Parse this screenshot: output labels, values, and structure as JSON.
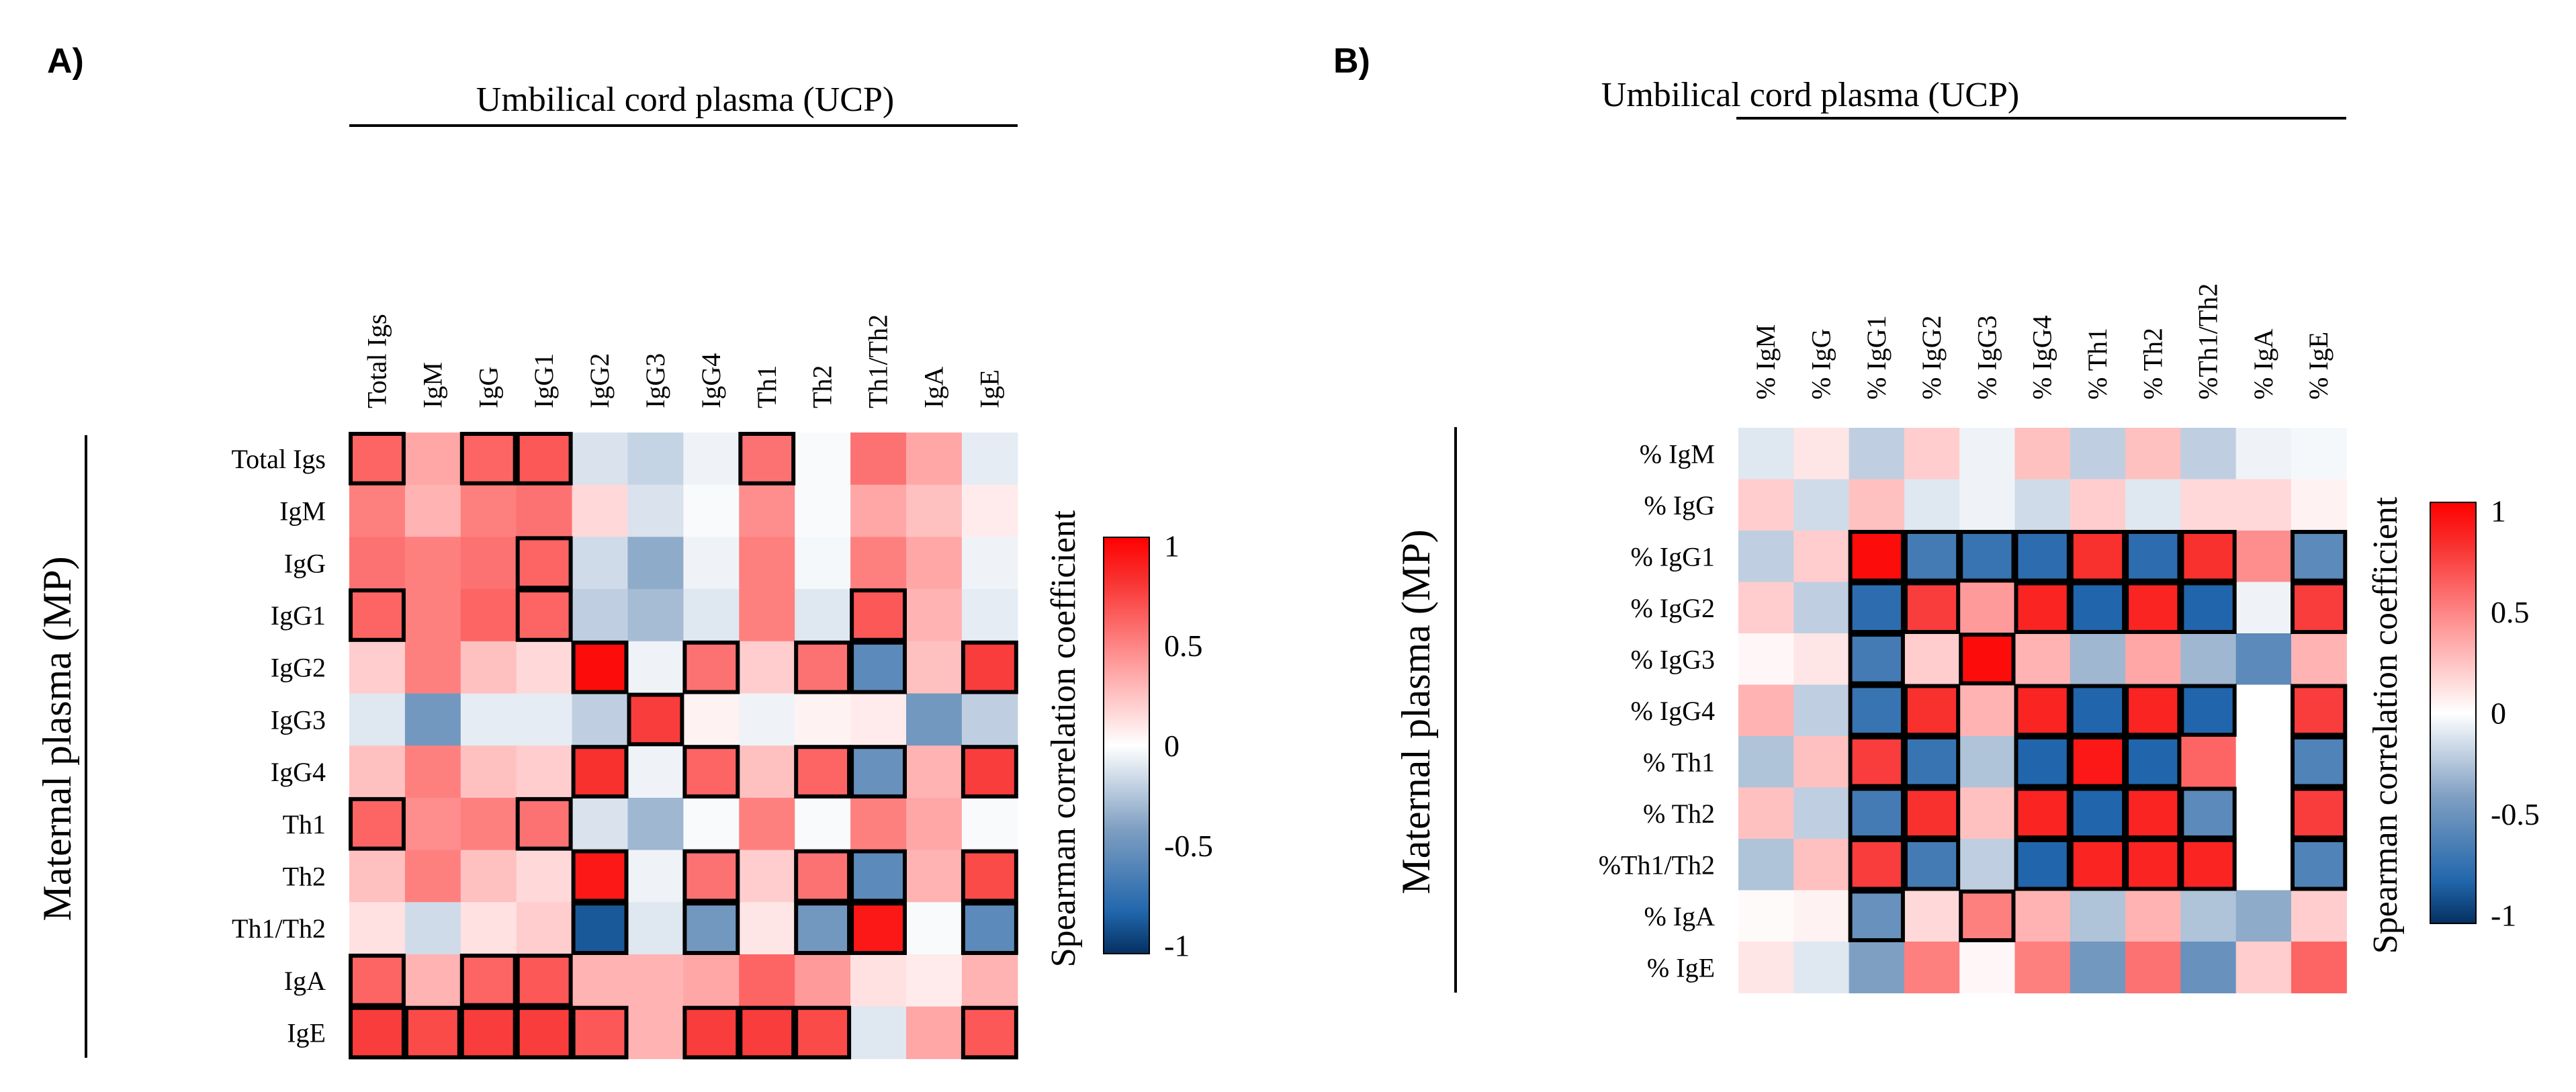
{
  "chart_data": [
    {
      "type": "heatmap",
      "panel_label": "A)",
      "title": "Umbilical cord plasma (UCP)",
      "ylabel": "Maternal plasma (MP)",
      "colorbar_label": "Spearman correlation coefficient",
      "colorbar_range": [
        -1,
        1
      ],
      "colorbar_ticks": [
        "1",
        "0.5",
        "0",
        "-0.5",
        "-1"
      ],
      "columns": [
        "Total Igs",
        "IgM",
        "IgG",
        "IgG1",
        "IgG2",
        "IgG3",
        "IgG4",
        "Th1",
        "Th2",
        "Th1/Th2",
        "IgA",
        "IgE"
      ],
      "rows": [
        "Total Igs",
        "IgM",
        "IgG",
        "IgG1",
        "IgG2",
        "IgG3",
        "IgG4",
        "Th1",
        "Th2",
        "Th1/Th2",
        "IgA",
        "IgE"
      ],
      "values": [
        [
          0.6,
          0.35,
          0.6,
          0.65,
          -0.12,
          -0.18,
          -0.05,
          0.55,
          -0.02,
          0.55,
          0.35,
          -0.08
        ],
        [
          0.5,
          0.3,
          0.5,
          0.55,
          0.15,
          -0.12,
          -0.02,
          0.45,
          -0.02,
          0.35,
          0.25,
          0.08
        ],
        [
          0.55,
          0.5,
          0.55,
          0.6,
          -0.15,
          -0.35,
          -0.05,
          0.5,
          -0.03,
          0.5,
          0.35,
          -0.05
        ],
        [
          0.6,
          0.5,
          0.6,
          0.6,
          -0.2,
          -0.28,
          -0.1,
          0.5,
          -0.1,
          0.65,
          0.3,
          -0.08
        ],
        [
          0.2,
          0.5,
          0.25,
          0.15,
          0.95,
          -0.05,
          0.55,
          0.2,
          0.55,
          -0.55,
          0.25,
          0.75
        ],
        [
          -0.1,
          -0.45,
          -0.08,
          -0.08,
          -0.2,
          0.75,
          0.05,
          -0.05,
          0.05,
          0.08,
          -0.45,
          -0.2
        ],
        [
          0.25,
          0.5,
          0.25,
          0.2,
          0.8,
          -0.05,
          0.6,
          0.25,
          0.6,
          -0.5,
          0.3,
          0.75
        ],
        [
          0.6,
          0.45,
          0.5,
          0.55,
          -0.12,
          -0.3,
          -0.02,
          0.5,
          -0.02,
          0.5,
          0.35,
          -0.02
        ],
        [
          0.25,
          0.5,
          0.25,
          0.15,
          0.9,
          -0.05,
          0.55,
          0.2,
          0.55,
          -0.55,
          0.3,
          0.7
        ],
        [
          0.12,
          -0.15,
          0.12,
          0.2,
          -0.85,
          -0.1,
          -0.45,
          0.1,
          -0.45,
          0.9,
          -0.02,
          -0.55
        ],
        [
          0.6,
          0.3,
          0.6,
          0.65,
          0.3,
          0.3,
          0.35,
          0.6,
          0.4,
          0.12,
          0.08,
          0.3
        ],
        [
          0.75,
          0.7,
          0.75,
          0.75,
          0.65,
          0.3,
          0.75,
          0.75,
          0.7,
          -0.1,
          0.35,
          0.65
        ]
      ],
      "significant": [
        [
          1,
          0,
          1,
          1,
          0,
          0,
          0,
          1,
          0,
          0,
          0,
          0
        ],
        [
          0,
          0,
          0,
          0,
          0,
          0,
          0,
          0,
          0,
          0,
          0,
          0
        ],
        [
          0,
          0,
          0,
          1,
          0,
          0,
          0,
          0,
          0,
          0,
          0,
          0
        ],
        [
          1,
          0,
          0,
          1,
          0,
          0,
          0,
          0,
          0,
          1,
          0,
          0
        ],
        [
          0,
          0,
          0,
          0,
          1,
          0,
          1,
          0,
          1,
          1,
          0,
          1
        ],
        [
          0,
          0,
          0,
          0,
          0,
          1,
          0,
          0,
          0,
          0,
          0,
          0
        ],
        [
          0,
          0,
          0,
          0,
          1,
          0,
          1,
          0,
          1,
          1,
          0,
          1
        ],
        [
          1,
          0,
          0,
          1,
          0,
          0,
          0,
          0,
          0,
          0,
          0,
          0
        ],
        [
          0,
          0,
          0,
          0,
          1,
          0,
          1,
          0,
          1,
          1,
          0,
          1
        ],
        [
          0,
          0,
          0,
          0,
          1,
          0,
          1,
          0,
          1,
          1,
          0,
          1
        ],
        [
          1,
          0,
          1,
          1,
          0,
          0,
          0,
          0,
          0,
          0,
          0,
          0
        ],
        [
          1,
          1,
          1,
          1,
          1,
          0,
          1,
          1,
          1,
          0,
          0,
          1
        ]
      ]
    },
    {
      "type": "heatmap",
      "panel_label": "B)",
      "title": "Umbilical cord plasma (UCP)",
      "ylabel": "Maternal plasma (MP)",
      "colorbar_label": "Spearman correlation coefficient",
      "colorbar_range": [
        -1,
        1
      ],
      "colorbar_ticks": [
        "1",
        "0.5",
        "0",
        "-0.5",
        "-1"
      ],
      "columns": [
        "% IgM",
        "% IgG",
        "% IgG1",
        "% IgG2",
        "% IgG3",
        "% IgG4",
        "% Th1",
        "% Th2",
        "%Th1/Th2",
        "% IgA",
        "% IgE"
      ],
      "rows": [
        "% IgM",
        "% IgG",
        "% IgG1",
        "% IgG2",
        "% IgG3",
        "% IgG4",
        "% Th1",
        "% Th2",
        "%Th1/Th2",
        "% IgA",
        "% IgE"
      ],
      "values": [
        [
          -0.1,
          0.1,
          -0.2,
          0.2,
          -0.05,
          0.25,
          -0.2,
          0.25,
          -0.2,
          -0.05,
          -0.03
        ],
        [
          0.2,
          -0.15,
          0.25,
          -0.1,
          -0.05,
          -0.15,
          0.2,
          -0.1,
          0.15,
          0.15,
          0.05
        ],
        [
          -0.2,
          0.2,
          0.95,
          -0.65,
          -0.7,
          -0.75,
          0.8,
          -0.75,
          0.8,
          0.45,
          -0.55
        ],
        [
          0.2,
          -0.2,
          -0.75,
          0.75,
          0.4,
          0.85,
          -0.8,
          0.85,
          -0.8,
          -0.05,
          0.75
        ],
        [
          0.03,
          0.1,
          -0.65,
          0.2,
          0.95,
          0.3,
          -0.3,
          0.35,
          -0.3,
          -0.55,
          0.3
        ],
        [
          0.3,
          -0.2,
          -0.7,
          0.8,
          0.3,
          0.85,
          -0.8,
          0.85,
          -0.8,
          0.0,
          0.75
        ],
        [
          -0.25,
          0.25,
          0.75,
          -0.7,
          -0.25,
          -0.8,
          0.9,
          -0.8,
          0.6,
          0.0,
          -0.6
        ],
        [
          0.25,
          -0.2,
          -0.65,
          0.8,
          0.25,
          0.85,
          -0.8,
          0.85,
          -0.55,
          0.0,
          0.75
        ],
        [
          -0.25,
          0.25,
          0.75,
          -0.65,
          -0.2,
          -0.8,
          0.85,
          0.85,
          0.85,
          0.0,
          -0.6
        ],
        [
          0.02,
          0.05,
          -0.5,
          0.15,
          0.5,
          0.3,
          -0.25,
          0.3,
          -0.25,
          -0.35,
          0.2
        ],
        [
          0.1,
          -0.1,
          -0.4,
          0.5,
          0.03,
          0.5,
          -0.45,
          0.55,
          -0.5,
          0.2,
          0.6
        ]
      ],
      "significant": [
        [
          0,
          0,
          0,
          0,
          0,
          0,
          0,
          0,
          0,
          0,
          0
        ],
        [
          0,
          0,
          0,
          0,
          0,
          0,
          0,
          0,
          0,
          0,
          0
        ],
        [
          0,
          0,
          1,
          1,
          1,
          1,
          1,
          1,
          1,
          0,
          1
        ],
        [
          0,
          0,
          1,
          1,
          0,
          1,
          1,
          1,
          1,
          0,
          1
        ],
        [
          0,
          0,
          1,
          0,
          1,
          0,
          0,
          0,
          0,
          0,
          0
        ],
        [
          0,
          0,
          1,
          1,
          0,
          1,
          1,
          1,
          1,
          0,
          1
        ],
        [
          0,
          0,
          1,
          1,
          0,
          1,
          1,
          1,
          0,
          0,
          1
        ],
        [
          0,
          0,
          1,
          1,
          0,
          1,
          1,
          1,
          1,
          0,
          1
        ],
        [
          0,
          0,
          1,
          1,
          0,
          1,
          1,
          1,
          1,
          0,
          1
        ],
        [
          0,
          0,
          1,
          0,
          1,
          0,
          0,
          0,
          0,
          0,
          0
        ],
        [
          0,
          0,
          0,
          0,
          0,
          0,
          0,
          0,
          0,
          0,
          0
        ]
      ]
    }
  ]
}
